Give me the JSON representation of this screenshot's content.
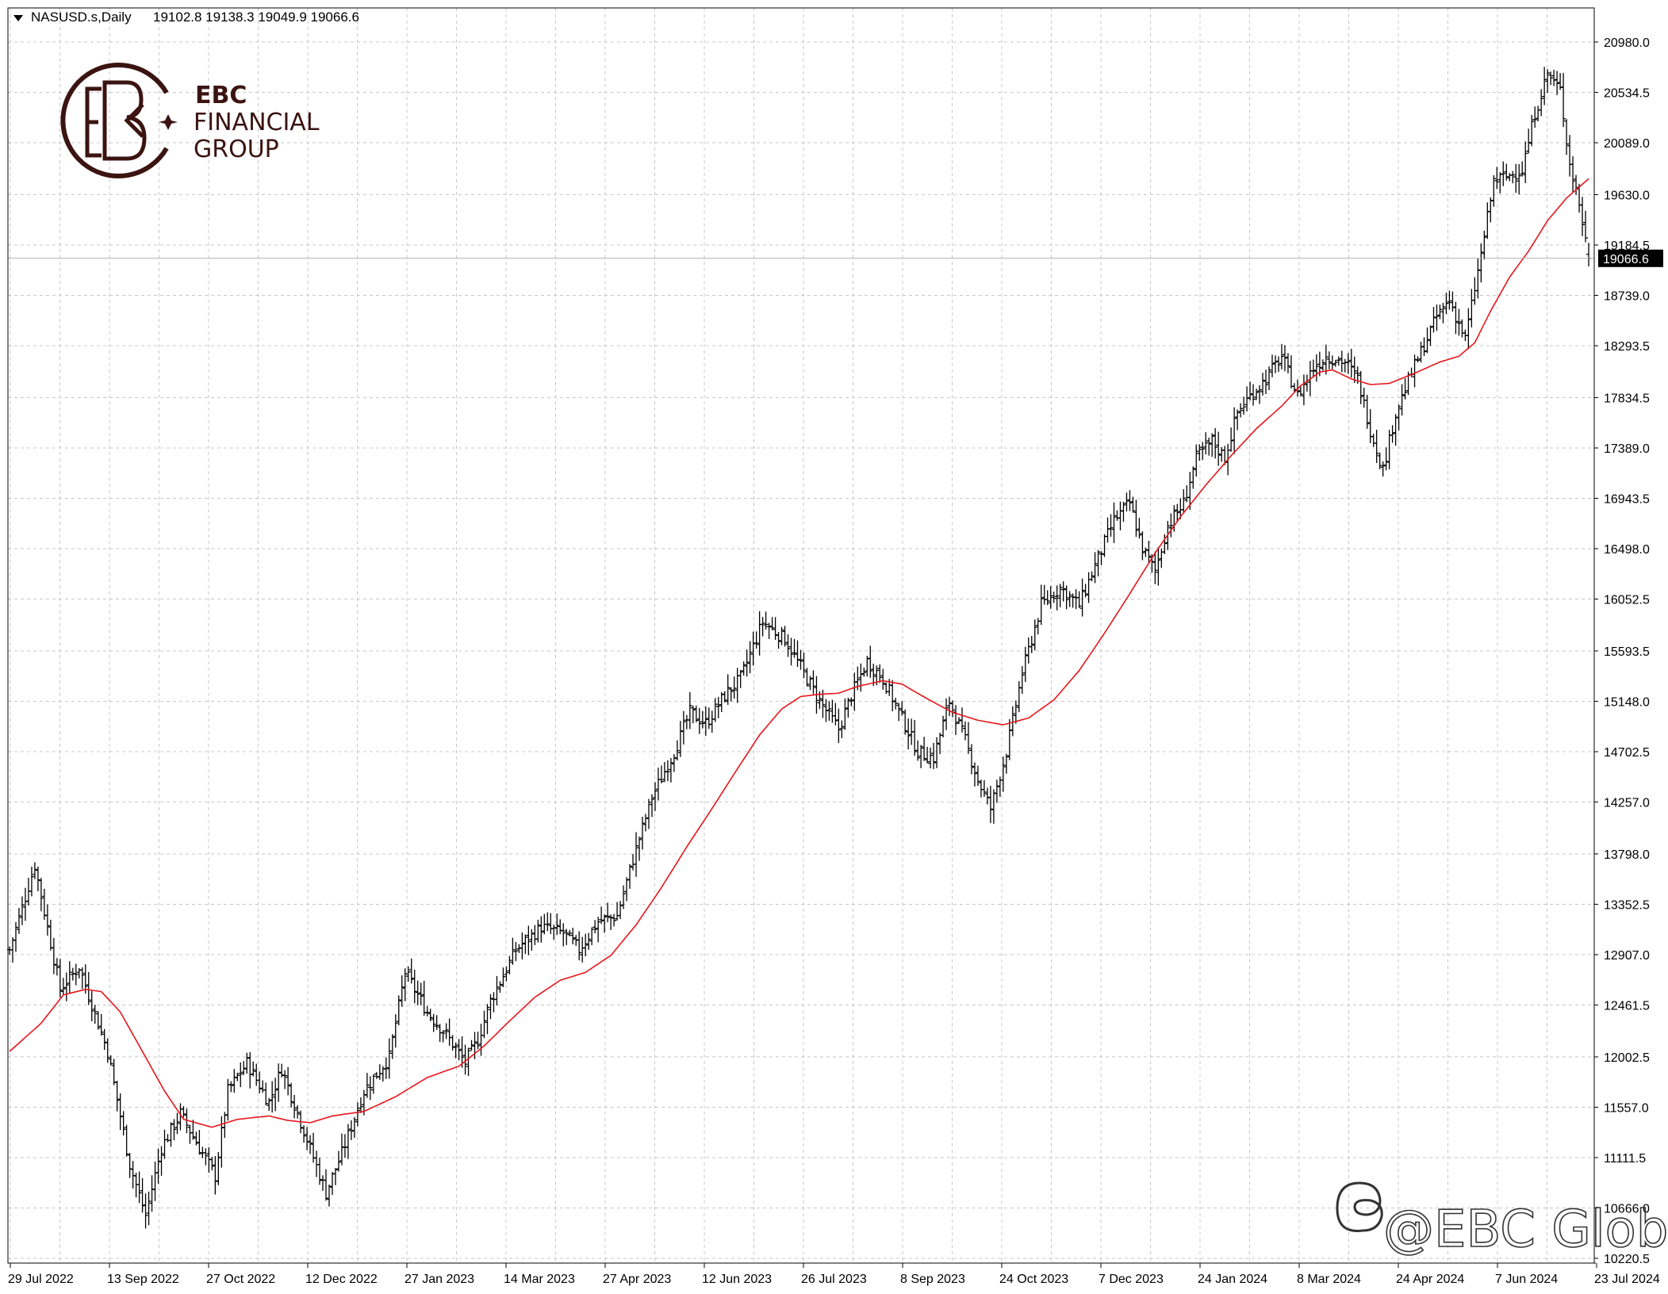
{
  "header": {
    "symbol": "NASUSD.s,Daily",
    "ohlc": "19102.8 19138.3 19049.9 19066.6"
  },
  "logo": {
    "line1": "EBC",
    "line2": "FINANCIAL",
    "line3": "GROUP"
  },
  "watermark": {
    "text": "@EBC Global",
    "icon": "threads-icon"
  },
  "colors": {
    "background": "#ffffff",
    "grid": "#c8c8c8",
    "bars": "#000000",
    "moving_average": "#e8161b",
    "price_line": "#b0b0b0",
    "price_label_bg": "#000000",
    "logo": "#3b1411"
  },
  "chart_data": {
    "type": "ohlc-bar",
    "symbol": "NASUSD.s",
    "timeframe": "Daily",
    "last_price": 19066.6,
    "last_price_label": "19066.6",
    "ylim": [
      10220.5,
      21130
    ],
    "y_ticks": [
      "20980.0",
      "20534.5",
      "20089.0",
      "19630.0",
      "19184.5",
      "18739.0",
      "18293.5",
      "17834.5",
      "17389.0",
      "16943.5",
      "16498.0",
      "16052.5",
      "15593.5",
      "15148.0",
      "14702.5",
      "14257.0",
      "13798.0",
      "13352.5",
      "12907.0",
      "12461.5",
      "12002.5",
      "11557.0",
      "11111.5",
      "10666.0",
      "10220.5"
    ],
    "x_ticks": [
      "29 Jul 2022",
      "13 Sep 2022",
      "27 Oct 2022",
      "12 Dec 2022",
      "27 Jan 2023",
      "14 Mar 2023",
      "27 Apr 2023",
      "12 Jun 2023",
      "26 Jul 2023",
      "8 Sep 2023",
      "24 Oct 2023",
      "7 Dec 2023",
      "24 Jan 2024",
      "8 Mar 2024",
      "24 Apr 2024",
      "7 Jun 2024",
      "23 Jul 2024"
    ],
    "price_path": [
      [
        0,
        12950
      ],
      [
        8,
        13700
      ],
      [
        12,
        13150
      ],
      [
        16,
        12600
      ],
      [
        22,
        12800
      ],
      [
        31,
        12050
      ],
      [
        38,
        11050
      ],
      [
        43,
        10600
      ],
      [
        48,
        11200
      ],
      [
        54,
        11500
      ],
      [
        60,
        11200
      ],
      [
        65,
        10950
      ],
      [
        69,
        11700
      ],
      [
        75,
        11950
      ],
      [
        82,
        11600
      ],
      [
        86,
        11900
      ],
      [
        93,
        11350
      ],
      [
        100,
        10800
      ],
      [
        105,
        11150
      ],
      [
        112,
        11700
      ],
      [
        120,
        12000
      ],
      [
        125,
        12750
      ],
      [
        132,
        12400
      ],
      [
        138,
        12200
      ],
      [
        144,
        11950
      ],
      [
        148,
        12150
      ],
      [
        152,
        12500
      ],
      [
        160,
        12950
      ],
      [
        168,
        13150
      ],
      [
        175,
        13100
      ],
      [
        180,
        12950
      ],
      [
        186,
        13200
      ],
      [
        192,
        13250
      ],
      [
        197,
        13750
      ],
      [
        203,
        14300
      ],
      [
        210,
        14700
      ],
      [
        215,
        15050
      ],
      [
        220,
        14950
      ],
      [
        226,
        15200
      ],
      [
        231,
        15350
      ],
      [
        238,
        15850
      ],
      [
        245,
        15700
      ],
      [
        250,
        15450
      ],
      [
        256,
        15150
      ],
      [
        262,
        14900
      ],
      [
        266,
        15200
      ],
      [
        271,
        15500
      ],
      [
        276,
        15350
      ],
      [
        282,
        15000
      ],
      [
        287,
        14700
      ],
      [
        292,
        14650
      ],
      [
        297,
        15150
      ],
      [
        302,
        14800
      ],
      [
        306,
        14450
      ],
      [
        310,
        14200
      ],
      [
        315,
        14700
      ],
      [
        320,
        15400
      ],
      [
        326,
        16000
      ],
      [
        332,
        16150
      ],
      [
        338,
        16000
      ],
      [
        343,
        16350
      ],
      [
        349,
        16750
      ],
      [
        354,
        16900
      ],
      [
        358,
        16500
      ],
      [
        362,
        16300
      ],
      [
        366,
        16700
      ],
      [
        371,
        16900
      ],
      [
        375,
        17300
      ],
      [
        380,
        17450
      ],
      [
        384,
        17300
      ],
      [
        388,
        17700
      ],
      [
        392,
        17850
      ],
      [
        397,
        18000
      ],
      [
        402,
        18200
      ],
      [
        407,
        17850
      ],
      [
        412,
        18100
      ],
      [
        416,
        18200
      ],
      [
        422,
        18150
      ],
      [
        426,
        18000
      ],
      [
        430,
        17550
      ],
      [
        434,
        17200
      ],
      [
        438,
        17700
      ],
      [
        443,
        18050
      ],
      [
        447,
        18300
      ],
      [
        451,
        18550
      ],
      [
        455,
        18700
      ],
      [
        460,
        18350
      ],
      [
        465,
        19100
      ],
      [
        469,
        19750
      ],
      [
        474,
        19800
      ],
      [
        478,
        19850
      ],
      [
        482,
        20350
      ],
      [
        486,
        20700
      ],
      [
        490,
        20550
      ],
      [
        493,
        19900
      ],
      [
        496,
        19550
      ],
      [
        499,
        19066.6
      ]
    ],
    "moving_average": [
      [
        0,
        12050
      ],
      [
        10,
        12300
      ],
      [
        17,
        12550
      ],
      [
        24,
        12600
      ],
      [
        29,
        12580
      ],
      [
        35,
        12400
      ],
      [
        42,
        12050
      ],
      [
        49,
        11700
      ],
      [
        55,
        11450
      ],
      [
        64,
        11380
      ],
      [
        72,
        11450
      ],
      [
        82,
        11480
      ],
      [
        88,
        11440
      ],
      [
        95,
        11420
      ],
      [
        102,
        11480
      ],
      [
        112,
        11520
      ],
      [
        122,
        11650
      ],
      [
        132,
        11820
      ],
      [
        142,
        11920
      ],
      [
        150,
        12100
      ],
      [
        158,
        12320
      ],
      [
        166,
        12530
      ],
      [
        174,
        12680
      ],
      [
        182,
        12750
      ],
      [
        190,
        12900
      ],
      [
        198,
        13170
      ],
      [
        206,
        13500
      ],
      [
        214,
        13860
      ],
      [
        222,
        14200
      ],
      [
        230,
        14550
      ],
      [
        237,
        14850
      ],
      [
        244,
        15080
      ],
      [
        250,
        15190
      ],
      [
        256,
        15210
      ],
      [
        262,
        15220
      ],
      [
        268,
        15280
      ],
      [
        276,
        15330
      ],
      [
        282,
        15300
      ],
      [
        290,
        15170
      ],
      [
        298,
        15050
      ],
      [
        306,
        14980
      ],
      [
        314,
        14940
      ],
      [
        322,
        15000
      ],
      [
        330,
        15160
      ],
      [
        338,
        15420
      ],
      [
        346,
        15750
      ],
      [
        354,
        16100
      ],
      [
        362,
        16460
      ],
      [
        370,
        16780
      ],
      [
        378,
        17060
      ],
      [
        386,
        17320
      ],
      [
        394,
        17560
      ],
      [
        402,
        17760
      ],
      [
        408,
        17940
      ],
      [
        414,
        18060
      ],
      [
        418,
        18080
      ],
      [
        424,
        18000
      ],
      [
        430,
        17950
      ],
      [
        436,
        17960
      ],
      [
        444,
        18050
      ],
      [
        452,
        18150
      ],
      [
        458,
        18200
      ],
      [
        463,
        18320
      ],
      [
        468,
        18600
      ],
      [
        474,
        18900
      ],
      [
        480,
        19130
      ],
      [
        486,
        19400
      ],
      [
        492,
        19600
      ],
      [
        499,
        19770
      ]
    ]
  }
}
